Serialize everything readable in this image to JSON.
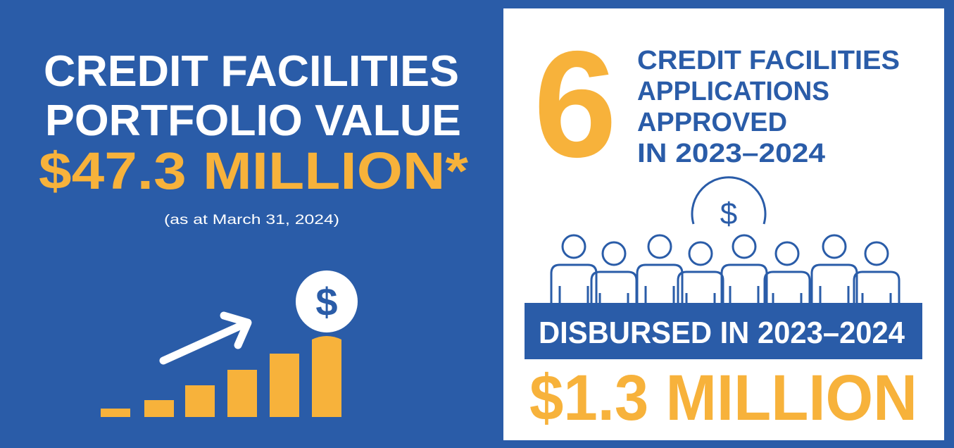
{
  "left": {
    "title_lines": [
      "CREDIT FACILITIES",
      "PORTFOLIO VALUE"
    ],
    "amount": "$47.3 MILLION*",
    "note": "(as at March 31, 2024)",
    "coin_symbol": "$"
  },
  "right": {
    "count": "6",
    "count_lines": [
      "CREDIT FACILITIES",
      "APPLICATIONS",
      "APPROVED",
      "IN 2023–2024"
    ],
    "coin_symbol": "$",
    "band": "DISBURSED IN 2023–2024",
    "amount": "$1.3 MILLION"
  }
}
